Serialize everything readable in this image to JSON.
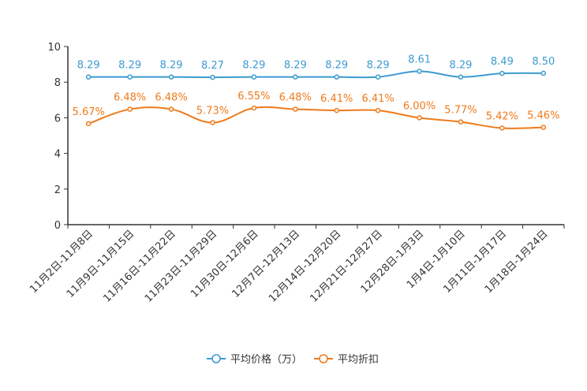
{
  "chart_data": {
    "type": "line",
    "title": "",
    "xlabel": "",
    "ylabel": "",
    "ylim": [
      0,
      10
    ],
    "yticks": [
      "0",
      "2",
      "4",
      "6",
      "8",
      "10"
    ],
    "categories": [
      "11月2日-11月8日",
      "11月9日-11月15日",
      "11月16日-11月22日",
      "11月23日-11月29日",
      "11月30日-12月6日",
      "12月7日-12月13日",
      "12月14日-12月20日",
      "12月21日-12月27日",
      "12月28日-1月3日",
      "1月4日-1月10日",
      "1月11日-1月17日",
      "1月18日-1月24日"
    ],
    "series": [
      {
        "name": "平均价格（万）",
        "color": "#3c9bd0",
        "values": [
          8.29,
          8.29,
          8.29,
          8.27,
          8.29,
          8.29,
          8.29,
          8.29,
          8.61,
          8.29,
          8.49,
          8.5
        ],
        "labels": [
          "8.29",
          "8.29",
          "8.29",
          "8.27",
          "8.29",
          "8.29",
          "8.29",
          "8.29",
          "8.61",
          "8.29",
          "8.49",
          "8.50"
        ]
      },
      {
        "name": "平均折扣",
        "color": "#f07a1a",
        "values": [
          5.67,
          6.48,
          6.48,
          5.73,
          6.55,
          6.48,
          6.41,
          6.41,
          6.0,
          5.77,
          5.42,
          5.46
        ],
        "labels": [
          "5.67%",
          "6.48%",
          "6.48%",
          "5.73%",
          "6.55%",
          "6.48%",
          "6.41%",
          "6.41%",
          "6.00%",
          "5.77%",
          "5.42%",
          "5.46%"
        ]
      }
    ],
    "legend_position": "bottom",
    "grid": false
  }
}
